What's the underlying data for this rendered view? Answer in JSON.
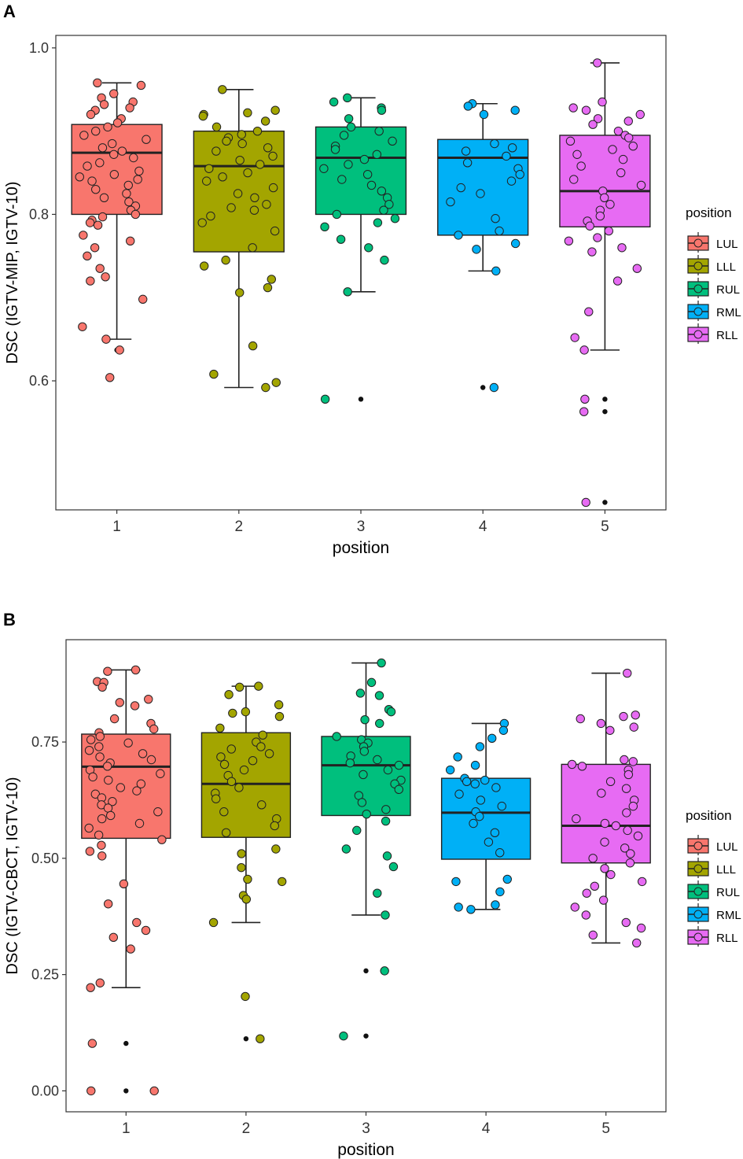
{
  "panels": [
    {
      "letter": "A",
      "chart_data": {
        "type": "box",
        "title": "",
        "xlabel": "position",
        "ylabel": "DSC (IGTV-MIP, IGTV-10)",
        "ylim": [
          0.445,
          1.015
        ],
        "yticks": [
          "0.6",
          "0.8",
          "1.0"
        ],
        "ytick_values": [
          0.6,
          0.8,
          1.0
        ],
        "categories": [
          "1",
          "2",
          "3",
          "4",
          "5"
        ],
        "legend": {
          "title": "position",
          "position": "right",
          "entries": [
            "LUL",
            "LLL",
            "RUL",
            "RML",
            "RLL"
          ]
        },
        "colors": [
          "#F8766D",
          "#A3A500",
          "#00BF7D",
          "#00B0F6",
          "#E76BF3"
        ],
        "boxes": [
          {
            "name": "LUL",
            "q1": 0.8,
            "median": 0.874,
            "q3": 0.908,
            "whisker_low": 0.65,
            "whisker_high": 0.958,
            "outliers": [
              0.637
            ],
            "points": [
              0.958,
              0.955,
              0.945,
              0.94,
              0.935,
              0.932,
              0.928,
              0.925,
              0.92,
              0.915,
              0.91,
              0.905,
              0.9,
              0.895,
              0.89,
              0.885,
              0.88,
              0.876,
              0.872,
              0.868,
              0.862,
              0.858,
              0.852,
              0.848,
              0.845,
              0.842,
              0.84,
              0.835,
              0.83,
              0.825,
              0.82,
              0.815,
              0.81,
              0.805,
              0.8,
              0.797,
              0.793,
              0.79,
              0.787,
              0.775,
              0.768,
              0.76,
              0.75,
              0.735,
              0.725,
              0.72,
              0.698,
              0.665,
              0.65,
              0.637,
              0.604
            ]
          },
          {
            "name": "LLL",
            "q1": 0.755,
            "median": 0.858,
            "q3": 0.9,
            "whisker_low": 0.592,
            "whisker_high": 0.95,
            "outliers": [],
            "points": [
              0.95,
              0.925,
              0.922,
              0.92,
              0.918,
              0.912,
              0.905,
              0.9,
              0.896,
              0.892,
              0.888,
              0.885,
              0.88,
              0.876,
              0.87,
              0.865,
              0.86,
              0.855,
              0.85,
              0.845,
              0.84,
              0.832,
              0.825,
              0.82,
              0.812,
              0.808,
              0.805,
              0.798,
              0.79,
              0.78,
              0.76,
              0.745,
              0.738,
              0.722,
              0.712,
              0.706,
              0.642,
              0.608,
              0.598,
              0.592
            ]
          },
          {
            "name": "RUL",
            "q1": 0.8,
            "median": 0.868,
            "q3": 0.905,
            "whisker_low": 0.707,
            "whisker_high": 0.94,
            "outliers": [
              0.578
            ],
            "points": [
              0.94,
              0.935,
              0.928,
              0.925,
              0.915,
              0.905,
              0.9,
              0.895,
              0.888,
              0.882,
              0.878,
              0.872,
              0.866,
              0.86,
              0.855,
              0.848,
              0.842,
              0.835,
              0.828,
              0.82,
              0.812,
              0.805,
              0.8,
              0.795,
              0.79,
              0.785,
              0.77,
              0.76,
              0.745,
              0.707,
              0.578
            ]
          },
          {
            "name": "RML",
            "q1": 0.775,
            "median": 0.868,
            "q3": 0.89,
            "whisker_low": 0.732,
            "whisker_high": 0.933,
            "outliers": [
              0.592
            ],
            "points": [
              0.933,
              0.93,
              0.925,
              0.92,
              0.885,
              0.88,
              0.876,
              0.87,
              0.862,
              0.855,
              0.848,
              0.84,
              0.832,
              0.825,
              0.815,
              0.795,
              0.78,
              0.775,
              0.765,
              0.758,
              0.732,
              0.592
            ]
          },
          {
            "name": "RLL",
            "q1": 0.785,
            "median": 0.828,
            "q3": 0.895,
            "whisker_low": 0.637,
            "whisker_high": 0.982,
            "outliers": [
              0.578,
              0.563,
              0.454
            ],
            "points": [
              0.982,
              0.935,
              0.928,
              0.925,
              0.92,
              0.915,
              0.912,
              0.908,
              0.9,
              0.895,
              0.892,
              0.888,
              0.882,
              0.878,
              0.872,
              0.866,
              0.858,
              0.85,
              0.842,
              0.835,
              0.828,
              0.82,
              0.812,
              0.805,
              0.798,
              0.792,
              0.786,
              0.78,
              0.772,
              0.768,
              0.76,
              0.755,
              0.735,
              0.72,
              0.683,
              0.652,
              0.637,
              0.578,
              0.563,
              0.454
            ]
          }
        ]
      }
    },
    {
      "letter": "B",
      "chart_data": {
        "type": "box",
        "title": "",
        "xlabel": "position",
        "ylabel": "DSC (IGTV-CBCT, IGTV-10)",
        "ylim": [
          -0.045,
          0.97
        ],
        "yticks": [
          "0.00",
          "0.25",
          "0.50",
          "0.75"
        ],
        "ytick_values": [
          0.0,
          0.25,
          0.5,
          0.75
        ],
        "categories": [
          "1",
          "2",
          "3",
          "4",
          "5"
        ],
        "legend": {
          "title": "position",
          "position": "right",
          "entries": [
            "LUL",
            "LLL",
            "RUL",
            "RML",
            "RLL"
          ]
        },
        "colors": [
          "#F8766D",
          "#A3A500",
          "#00BF7D",
          "#00B0F6",
          "#E76BF3"
        ],
        "boxes": [
          {
            "name": "LUL",
            "q1": 0.543,
            "median": 0.697,
            "q3": 0.767,
            "whisker_low": 0.222,
            "whisker_high": 0.905,
            "outliers": [
              0.102,
              0.0
            ],
            "points": [
              0.905,
              0.902,
              0.88,
              0.878,
              0.868,
              0.842,
              0.835,
              0.828,
              0.8,
              0.79,
              0.778,
              0.77,
              0.762,
              0.755,
              0.748,
              0.74,
              0.732,
              0.725,
              0.718,
              0.712,
              0.705,
              0.698,
              0.69,
              0.682,
              0.675,
              0.668,
              0.66,
              0.652,
              0.645,
              0.638,
              0.63,
              0.622,
              0.615,
              0.608,
              0.6,
              0.592,
              0.585,
              0.575,
              0.565,
              0.55,
              0.54,
              0.528,
              0.515,
              0.505,
              0.445,
              0.402,
              0.362,
              0.345,
              0.33,
              0.305,
              0.232,
              0.222,
              0.102,
              0.0,
              0.0
            ]
          },
          {
            "name": "LLL",
            "q1": 0.545,
            "median": 0.66,
            "q3": 0.77,
            "whisker_low": 0.362,
            "whisker_high": 0.87,
            "outliers": [
              0.203,
              0.112
            ],
            "points": [
              0.87,
              0.868,
              0.852,
              0.83,
              0.815,
              0.812,
              0.805,
              0.78,
              0.765,
              0.75,
              0.74,
              0.735,
              0.725,
              0.718,
              0.71,
              0.702,
              0.69,
              0.678,
              0.665,
              0.652,
              0.64,
              0.628,
              0.615,
              0.6,
              0.585,
              0.57,
              0.555,
              0.52,
              0.51,
              0.48,
              0.455,
              0.45,
              0.42,
              0.412,
              0.362,
              0.203,
              0.112
            ]
          },
          {
            "name": "RUL",
            "q1": 0.592,
            "median": 0.7,
            "q3": 0.762,
            "whisker_low": 0.378,
            "whisker_high": 0.92,
            "outliers": [
              0.258,
              0.118
            ],
            "points": [
              0.92,
              0.878,
              0.855,
              0.85,
              0.82,
              0.815,
              0.798,
              0.79,
              0.762,
              0.755,
              0.748,
              0.74,
              0.73,
              0.72,
              0.712,
              0.705,
              0.7,
              0.69,
              0.68,
              0.668,
              0.66,
              0.648,
              0.635,
              0.62,
              0.605,
              0.595,
              0.58,
              0.56,
              0.52,
              0.505,
              0.482,
              0.425,
              0.378,
              0.258,
              0.118
            ]
          },
          {
            "name": "RML",
            "q1": 0.498,
            "median": 0.598,
            "q3": 0.672,
            "whisker_low": 0.39,
            "whisker_high": 0.79,
            "outliers": [],
            "points": [
              0.79,
              0.775,
              0.758,
              0.74,
              0.718,
              0.7,
              0.69,
              0.672,
              0.668,
              0.665,
              0.66,
              0.652,
              0.638,
              0.625,
              0.612,
              0.6,
              0.59,
              0.575,
              0.555,
              0.535,
              0.512,
              0.455,
              0.45,
              0.428,
              0.4,
              0.395,
              0.39
            ]
          },
          {
            "name": "RLL",
            "q1": 0.49,
            "median": 0.57,
            "q3": 0.702,
            "whisker_low": 0.318,
            "whisker_high": 0.898,
            "outliers": [],
            "points": [
              0.898,
              0.808,
              0.805,
              0.8,
              0.79,
              0.782,
              0.775,
              0.712,
              0.708,
              0.702,
              0.698,
              0.69,
              0.68,
              0.665,
              0.65,
              0.64,
              0.625,
              0.612,
              0.598,
              0.585,
              0.575,
              0.57,
              0.56,
              0.548,
              0.535,
              0.522,
              0.51,
              0.5,
              0.49,
              0.478,
              0.465,
              0.45,
              0.44,
              0.425,
              0.41,
              0.395,
              0.378,
              0.362,
              0.35,
              0.335,
              0.318
            ]
          }
        ]
      }
    }
  ]
}
